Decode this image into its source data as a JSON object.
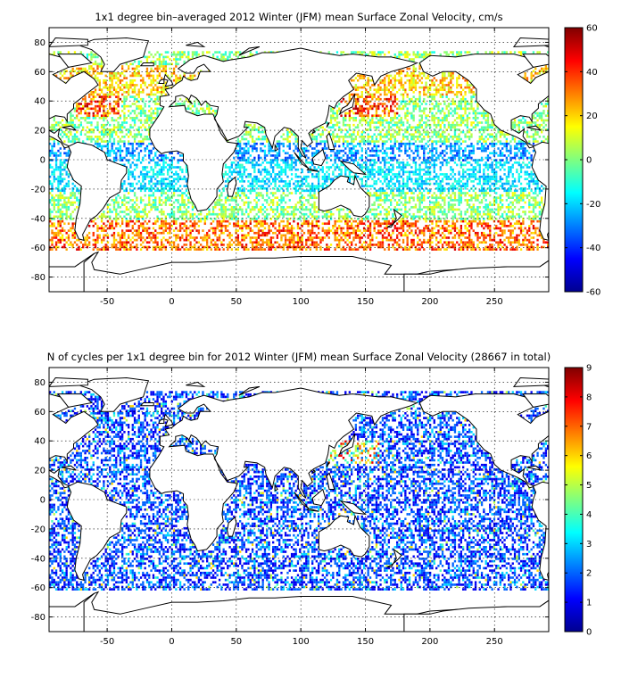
{
  "panels": [
    {
      "id": "velocity",
      "title": "1x1 degree bin–averaged 2012 Winter (JFM) mean Surface Zonal Velocity, cm/s",
      "colorbar": {
        "min": -60,
        "max": 60,
        "ticks": [
          -60,
          -40,
          -20,
          0,
          20,
          40,
          60
        ]
      }
    },
    {
      "id": "counts",
      "title": "N of cycles per 1x1 degree bin for 2012 Winter (JFM) mean Surface Zonal Velocity (28667 in total)",
      "colorbar": {
        "min": 0,
        "max": 9,
        "ticks": [
          0,
          1,
          2,
          3,
          4,
          5,
          6,
          7,
          8,
          9
        ]
      }
    }
  ],
  "map_axes": {
    "lon_range": [
      -95,
      292
    ],
    "lat_range": [
      -90,
      90
    ],
    "lon_ticks": [
      -50,
      0,
      50,
      100,
      150,
      200,
      250
    ],
    "lat_ticks": [
      -80,
      -60,
      -40,
      -20,
      0,
      20,
      40,
      60,
      80
    ],
    "grid": true
  },
  "colormap": "jet",
  "colors": {
    "land_fill": "#ffffff",
    "coast": "#000000",
    "background": "#ffffff"
  }
}
